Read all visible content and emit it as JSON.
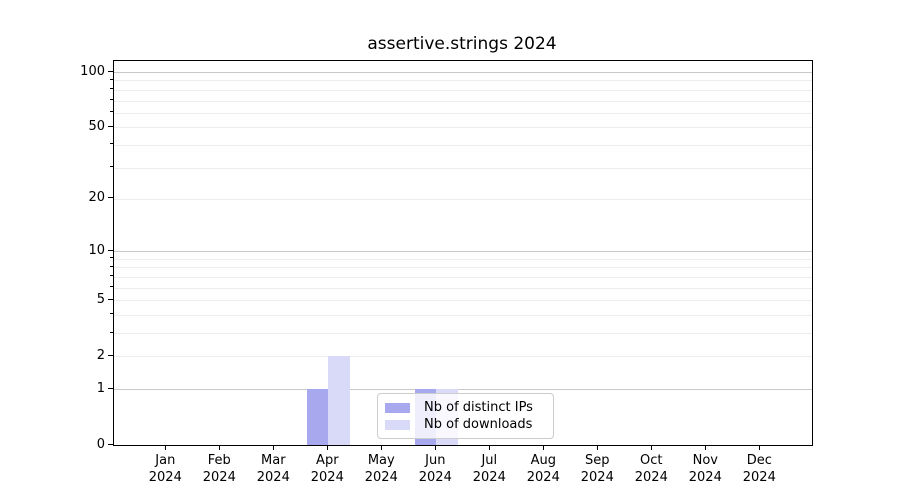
{
  "chart_data": {
    "type": "bar",
    "title": "assertive.strings 2024",
    "categories": [
      "Jan",
      "Feb",
      "Mar",
      "Apr",
      "May",
      "Jun",
      "Jul",
      "Aug",
      "Sep",
      "Oct",
      "Nov",
      "Dec"
    ],
    "x_axis": {
      "year_line": "2024"
    },
    "y_axis": {
      "scale": "log1p",
      "ticks": [
        0,
        1,
        2,
        5,
        10,
        20,
        50,
        100
      ],
      "ylim": [
        0,
        115
      ]
    },
    "grid": {
      "major_values": [
        1,
        10,
        100
      ],
      "minor_values": [
        2,
        3,
        4,
        5,
        6,
        7,
        8,
        9,
        20,
        30,
        40,
        50,
        60,
        70,
        80,
        90
      ],
      "major_color": "#c9c9c9",
      "minor_color": "#ececec"
    },
    "series": [
      {
        "name": "Nb of distinct IPs",
        "color": "#a8a8ef",
        "values": [
          0,
          0,
          0,
          1,
          0,
          1,
          0,
          0,
          0,
          0,
          0,
          0
        ]
      },
      {
        "name": "Nb of downloads",
        "color": "#d9d9f8",
        "values": [
          0,
          0,
          0,
          2,
          0,
          1,
          0,
          0,
          0,
          0,
          0,
          0
        ]
      }
    ],
    "legend": {
      "position": "lower center",
      "entries": [
        "Nb of distinct IPs",
        "Nb of downloads"
      ]
    },
    "colors": {
      "spine": "#000000",
      "background": "#ffffff",
      "legend_border": "#cccccc"
    }
  }
}
